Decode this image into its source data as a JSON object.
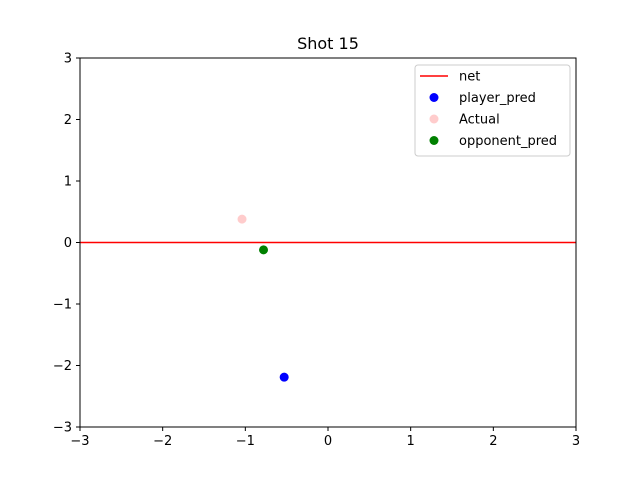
{
  "chart_data": {
    "type": "scatter",
    "title": "Shot 15",
    "xlabel": "",
    "ylabel": "",
    "xlim": [
      -3,
      3
    ],
    "ylim": [
      -3,
      3
    ],
    "xticks": [
      -3,
      -2,
      -1,
      0,
      1,
      2,
      3
    ],
    "yticks": [
      -3,
      -2,
      -1,
      0,
      1,
      2,
      3
    ],
    "xtick_labels": [
      "−3",
      "−2",
      "−1",
      "0",
      "1",
      "2",
      "3"
    ],
    "ytick_labels": [
      "−3",
      "−2",
      "−1",
      "0",
      "1",
      "2",
      "3"
    ],
    "grid": false,
    "legend_position": "top-right",
    "net": {
      "name": "net",
      "y": 0,
      "color": "#ff0000"
    },
    "series": [
      {
        "name": "player_pred",
        "color": "#0000ff",
        "alpha": 1.0,
        "points": [
          {
            "x": -0.53,
            "y": -2.19
          }
        ]
      },
      {
        "name": "Actual",
        "color": "#ff0000",
        "alpha": 0.2,
        "points": [
          {
            "x": -1.04,
            "y": 0.38
          }
        ]
      },
      {
        "name": "opponent_pred",
        "color": "#008000",
        "alpha": 1.0,
        "points": [
          {
            "x": -0.78,
            "y": -0.12
          }
        ]
      }
    ]
  }
}
